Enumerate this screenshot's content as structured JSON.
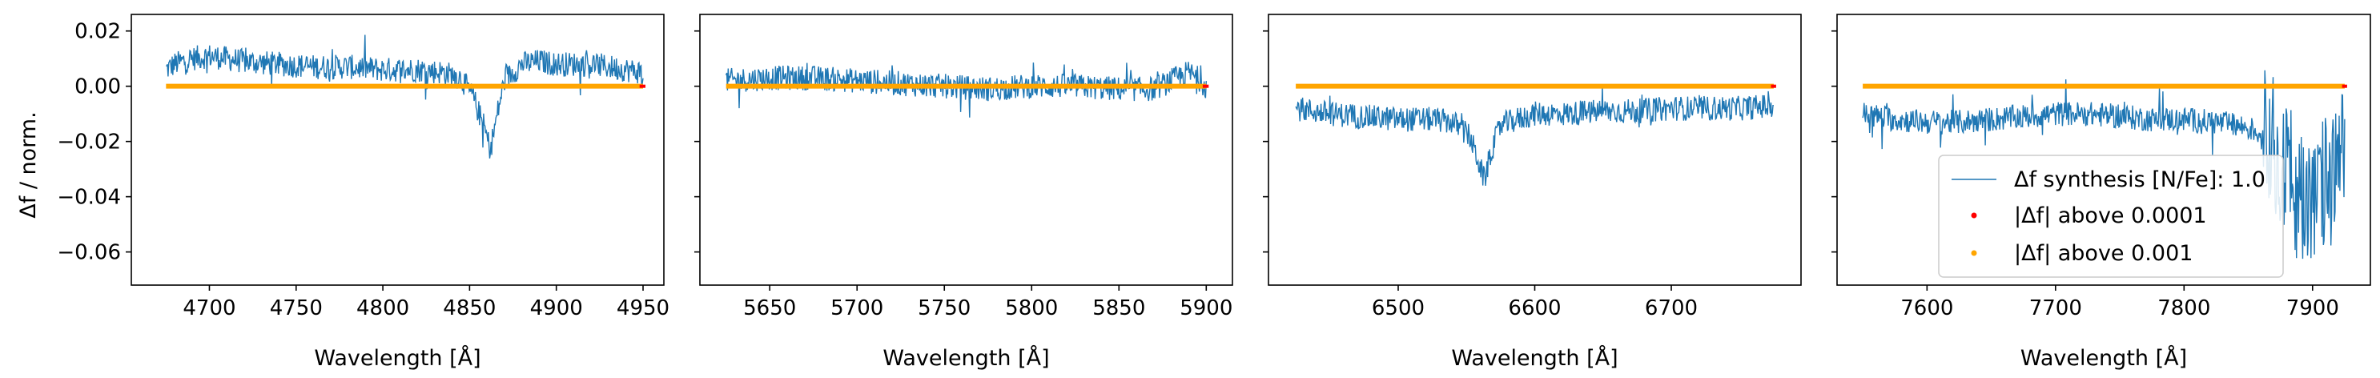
{
  "figure": {
    "ylabel": "Δf / norm.",
    "xlabel": "Wavelength [Å]"
  },
  "colors": {
    "series": "#1f77b4",
    "above_1e4": "#ff0000",
    "above_1e3": "#ffa500"
  },
  "legend": {
    "placement": "lower-right of panel 4",
    "entries": [
      "Δf synthesis [N/Fe]: 1.0",
      "|Δf| above 0.0001",
      "|Δf| above 0.001"
    ]
  },
  "chart_data": [
    {
      "type": "line",
      "xlim": [
        4655,
        4962
      ],
      "ylim": [
        -0.072,
        0.026
      ],
      "xticks": [
        4700,
        4750,
        4800,
        4850,
        4900,
        4950
      ],
      "yticks": [
        -0.06,
        -0.04,
        -0.02,
        0.0,
        0.02
      ],
      "ytick_labels": [
        "−0.06",
        "−0.04",
        "−0.02",
        "0.00",
        "0.02"
      ],
      "grid": false,
      "x_range": [
        4675,
        4950
      ],
      "series": [
        {
          "label": "Δf synthesis [N/Fe]: 1.0",
          "points": [
            [
              4675,
              0.006
            ],
            [
              4680,
              0.008
            ],
            [
              4690,
              0.01
            ],
            [
              4700,
              0.011
            ],
            [
              4710,
              0.01
            ],
            [
              4720,
              0.009
            ],
            [
              4740,
              0.008
            ],
            [
              4760,
              0.007
            ],
            [
              4780,
              0.007
            ],
            [
              4800,
              0.006
            ],
            [
              4820,
              0.006
            ],
            [
              4835,
              0.005
            ],
            [
              4845,
              0.003
            ],
            [
              4852,
              -0.004
            ],
            [
              4858,
              -0.014
            ],
            [
              4862,
              -0.023
            ],
            [
              4866,
              -0.01
            ],
            [
              4870,
              0.002
            ],
            [
              4880,
              0.008
            ],
            [
              4890,
              0.009
            ],
            [
              4900,
              0.008
            ],
            [
              4920,
              0.008
            ],
            [
              4940,
              0.006
            ],
            [
              4950,
              0.005
            ]
          ]
        }
      ],
      "markers_above_0_001": {
        "y": 0.0,
        "from": 4675,
        "to": 4950
      },
      "markers_above_0_0001": {
        "y": 0.0,
        "from": 4948,
        "to": 4950
      }
    },
    {
      "type": "line",
      "xlim": [
        5610,
        5915
      ],
      "ylim": [
        -0.072,
        0.026
      ],
      "xticks": [
        5650,
        5700,
        5750,
        5800,
        5850,
        5900
      ],
      "grid": false,
      "x_range": [
        5625,
        5900
      ],
      "series": [
        {
          "label": "Δf synthesis [N/Fe]: 1.0",
          "points": [
            [
              5625,
              0.002
            ],
            [
              5650,
              0.003
            ],
            [
              5675,
              0.003
            ],
            [
              5700,
              0.002
            ],
            [
              5725,
              0.001
            ],
            [
              5750,
              0.0
            ],
            [
              5775,
              -0.001
            ],
            [
              5800,
              0.0
            ],
            [
              5825,
              0.0
            ],
            [
              5850,
              -0.001
            ],
            [
              5870,
              -0.001
            ],
            [
              5880,
              0.002
            ],
            [
              5890,
              0.005
            ],
            [
              5895,
              0.003
            ],
            [
              5900,
              0.0
            ]
          ]
        }
      ],
      "markers_above_0_001": {
        "y": 0.0,
        "from": 5625,
        "to": 5900
      },
      "markers_above_0_0001": {
        "y": 0.0,
        "from": 5898,
        "to": 5900
      }
    },
    {
      "type": "line",
      "xlim": [
        6405,
        6795
      ],
      "ylim": [
        -0.072,
        0.026
      ],
      "xticks": [
        6500,
        6600,
        6700
      ],
      "grid": false,
      "x_range": [
        6425,
        6775
      ],
      "series": [
        {
          "label": "Δf synthesis [N/Fe]: 1.0",
          "points": [
            [
              6425,
              -0.008
            ],
            [
              6450,
              -0.01
            ],
            [
              6475,
              -0.011
            ],
            [
              6500,
              -0.012
            ],
            [
              6525,
              -0.012
            ],
            [
              6540,
              -0.013
            ],
            [
              6552,
              -0.018
            ],
            [
              6558,
              -0.026
            ],
            [
              6563,
              -0.034
            ],
            [
              6568,
              -0.024
            ],
            [
              6575,
              -0.014
            ],
            [
              6600,
              -0.01
            ],
            [
              6625,
              -0.01
            ],
            [
              6650,
              -0.009
            ],
            [
              6675,
              -0.009
            ],
            [
              6700,
              -0.008
            ],
            [
              6725,
              -0.008
            ],
            [
              6750,
              -0.008
            ],
            [
              6775,
              -0.007
            ]
          ]
        }
      ],
      "markers_above_0_001": {
        "y": 0.0,
        "from": 6425,
        "to": 6775
      },
      "markers_above_0_0001": {
        "y": 0.0,
        "from": 6773,
        "to": 6775
      }
    },
    {
      "type": "line",
      "xlim": [
        7530,
        7945
      ],
      "ylim": [
        -0.072,
        0.026
      ],
      "xticks": [
        7600,
        7700,
        7800,
        7900
      ],
      "grid": false,
      "x_range": [
        7550,
        7925
      ],
      "series": [
        {
          "label": "Δf synthesis [N/Fe]: 1.0",
          "points": [
            [
              7550,
              -0.01
            ],
            [
              7575,
              -0.012
            ],
            [
              7600,
              -0.013
            ],
            [
              7625,
              -0.013
            ],
            [
              7650,
              -0.012
            ],
            [
              7675,
              -0.011
            ],
            [
              7700,
              -0.01
            ],
            [
              7725,
              -0.01
            ],
            [
              7750,
              -0.011
            ],
            [
              7775,
              -0.012
            ],
            [
              7800,
              -0.012
            ],
            [
              7825,
              -0.013
            ],
            [
              7850,
              -0.015
            ],
            [
              7870,
              -0.02
            ],
            [
              7880,
              -0.03
            ],
            [
              7890,
              -0.04
            ],
            [
              7900,
              -0.045
            ],
            [
              7910,
              -0.035
            ],
            [
              7920,
              -0.03
            ],
            [
              7925,
              -0.025
            ]
          ]
        }
      ],
      "markers_above_0_001": {
        "y": 0.0,
        "from": 7550,
        "to": 7925
      },
      "markers_above_0_0001": {
        "y": 0.0,
        "from": 7923,
        "to": 7925
      }
    }
  ]
}
